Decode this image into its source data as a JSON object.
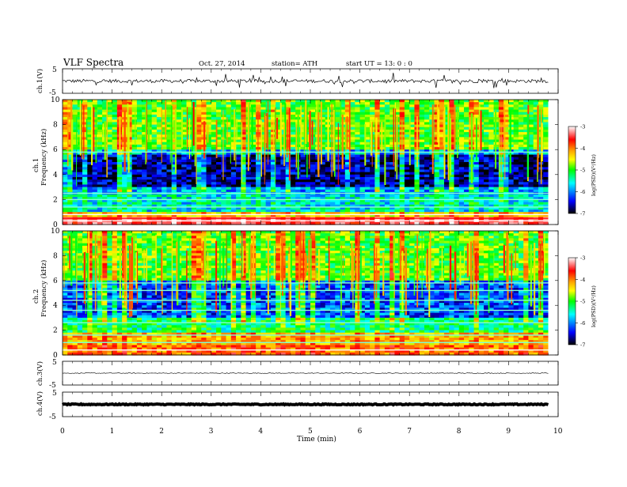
{
  "header": {
    "title": "VLF  Spectra",
    "date": "Oct. 27, 2014",
    "station": "station= ATH",
    "start": "start  UT  =    13: 0  : 0"
  },
  "panels": {
    "ch1_wave": {
      "ylabel": "ch.1(V)",
      "top_tick": "5",
      "bottom_tick": "-5"
    },
    "ch1_spec": {
      "ylabel1": "ch.1",
      "ylabel2": "Frequency  (kHz)"
    },
    "ch2_spec": {
      "ylabel1": "ch.2",
      "ylabel2": "Frequency  (kHz)"
    },
    "ch3_wave": {
      "ylabel": "ch.3(V)",
      "top_tick": "5",
      "bottom_tick": "-5"
    },
    "ch4_wave": {
      "ylabel": "ch.4(V)",
      "top_tick": "5",
      "bottom_tick": "-5"
    }
  },
  "colorbar": {
    "label": "log(PSD)(V²/Hz)",
    "ticks": [
      "-3",
      "-4",
      "-5",
      "-6",
      "-7"
    ],
    "colors": [
      "#ffffff",
      "#ff0000",
      "#ffa500",
      "#ffff00",
      "#00ff00",
      "#00ffff",
      "#0000ff",
      "#000000"
    ]
  },
  "chart_data": [
    {
      "type": "line",
      "title": "ch.1(V)",
      "xlim": [
        0,
        10
      ],
      "ylim": [
        -5,
        5
      ],
      "x_span": [
        0,
        9.8
      ],
      "baseline_value": 0,
      "noise_amplitude": 0.7
    },
    {
      "type": "heatmap",
      "title": "ch.1 spectrogram",
      "xlabel": "Time (min)",
      "ylabel": "Frequency (kHz)",
      "xlim": [
        0,
        10
      ],
      "ylim": [
        0,
        10
      ],
      "x_span": [
        0,
        9.8
      ],
      "yticks": [
        "0",
        "2",
        "4",
        "6",
        "8",
        "10"
      ],
      "value_label": "log(PSD)(V²/Hz)",
      "value_range": [
        -7,
        -3
      ],
      "bands_khz": [
        {
          "from": 0,
          "to": 0.6,
          "level": -3.6
        },
        {
          "from": 0.6,
          "to": 1.0,
          "level": -4.6
        },
        {
          "from": 1.0,
          "to": 2.4,
          "level": -5.8
        },
        {
          "from": 2.4,
          "to": 3.0,
          "level": -6.0
        },
        {
          "from": 3.0,
          "to": 5.6,
          "level": -6.7
        },
        {
          "from": 5.6,
          "to": 6.0,
          "level": -6.0
        },
        {
          "from": 6.0,
          "to": 10,
          "level": -5.2
        }
      ],
      "lines_khz": [
        0.3,
        0.5,
        0.8,
        1.4,
        2.0,
        2.5,
        5.8
      ]
    },
    {
      "type": "heatmap",
      "title": "ch.2 spectrogram",
      "xlabel": "Time (min)",
      "ylabel": "Frequency (kHz)",
      "xlim": [
        0,
        10
      ],
      "ylim": [
        0,
        10
      ],
      "x_span": [
        0,
        9.8
      ],
      "yticks": [
        "0",
        "2",
        "4",
        "6",
        "8",
        "10"
      ],
      "value_label": "log(PSD)(V²/Hz)",
      "value_range": [
        -7,
        -3
      ],
      "bands_khz": [
        {
          "from": 0,
          "to": 0.7,
          "level": -4.2
        },
        {
          "from": 0.7,
          "to": 1.8,
          "level": -4.5
        },
        {
          "from": 1.8,
          "to": 3.0,
          "level": -5.5
        },
        {
          "from": 3.0,
          "to": 6.0,
          "level": -6.3
        },
        {
          "from": 6.0,
          "to": 10,
          "level": -5.2
        }
      ],
      "lines_khz": [
        0.4,
        1.0,
        1.6,
        2.6,
        3.6,
        4.4,
        5.2,
        5.8
      ]
    },
    {
      "type": "line",
      "title": "ch.3(V)",
      "xlim": [
        0,
        10
      ],
      "ylim": [
        -5,
        5
      ],
      "x_span": [
        0,
        9.8
      ],
      "baseline_value": 0,
      "noise_amplitude": 0.15
    },
    {
      "type": "line",
      "title": "ch.4(V)",
      "xlim": [
        0,
        10
      ],
      "ylim": [
        -5,
        5
      ],
      "x_span": [
        0,
        9.8
      ],
      "baseline_value": 0,
      "noise_amplitude": 0.2
    }
  ],
  "xaxis": {
    "label": "Time  (min)",
    "ticks": [
      "0",
      "1",
      "2",
      "3",
      "4",
      "5",
      "6",
      "7",
      "8",
      "9",
      "10"
    ]
  }
}
